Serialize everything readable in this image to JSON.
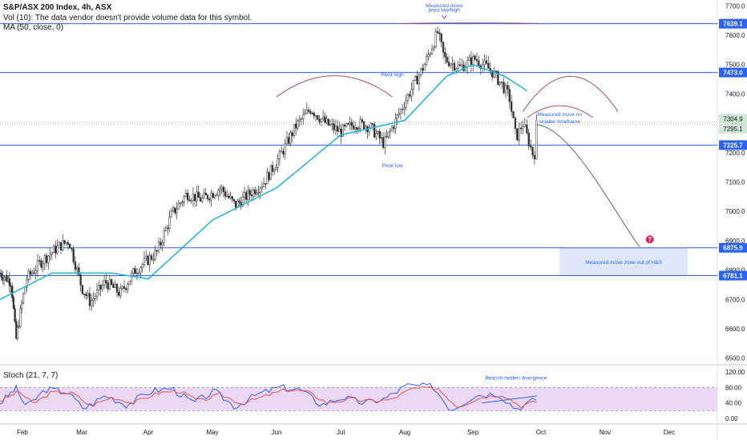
{
  "header": {
    "symbol_line": "S&P/ASX 200 Index, 4h, ASX",
    "volume_line": "Vol (10): The data vendor doesn't provide volume data for this symbol.",
    "ma_line": "MA (50, close, 0)"
  },
  "colors": {
    "up": "#26a69a",
    "down": "#ef5350",
    "candle": "#333333",
    "ma": "#2cb5d6",
    "level": "#2962ff",
    "arc": "#9c4f7a",
    "annotation": "#2962ff",
    "zone": "#c9d8f5",
    "stoch_k": "#2962ff",
    "stoch_d": "#ef5350",
    "stoch_band": "#e6c8f0",
    "price_label_bg": "#2962ff",
    "current_label_bg": "#d1e7d6"
  },
  "chart_data": {
    "type": "candlestick",
    "ylim": [
      6480,
      7720
    ],
    "y_ticks": [
      "7700.0",
      "7600.0",
      "7500.0",
      "7400.0",
      "7300.0",
      "7200.0",
      "7100.0",
      "7000.0",
      "6900.0",
      "6800.0",
      "6700.0",
      "6600.0",
      "6500.0"
    ],
    "y_tick_values": [
      7700,
      7600,
      7500,
      7400,
      7300,
      7200,
      7100,
      7000,
      6900,
      6800,
      6700,
      6600,
      6500
    ],
    "x_months": [
      "Feb",
      "Mar",
      "Apr",
      "May",
      "Jun",
      "Jul",
      "Aug",
      "Sep",
      "Oct",
      "Nov",
      "Dec"
    ],
    "x_month_dates": [
      "2021-02-01",
      "2021-03-01",
      "2021-04-01",
      "2021-05-01",
      "2021-06-01",
      "2021-07-01",
      "2021-08-01",
      "2021-09-01",
      "2021-10-01",
      "2021-11-01",
      "2021-12-01"
    ],
    "price_path": [
      [
        "2021-01-18",
        6790
      ],
      [
        "2021-01-25",
        6760
      ],
      [
        "2021-01-28",
        6560
      ],
      [
        "2021-02-03",
        6770
      ],
      [
        "2021-02-10",
        6830
      ],
      [
        "2021-02-18",
        6880
      ],
      [
        "2021-02-23",
        6900
      ],
      [
        "2021-03-01",
        6740
      ],
      [
        "2021-03-05",
        6690
      ],
      [
        "2021-03-12",
        6760
      ],
      [
        "2021-03-19",
        6720
      ],
      [
        "2021-03-26",
        6800
      ],
      [
        "2021-04-05",
        6860
      ],
      [
        "2021-04-12",
        6990
      ],
      [
        "2021-04-19",
        7060
      ],
      [
        "2021-04-26",
        7040
      ],
      [
        "2021-05-05",
        7080
      ],
      [
        "2021-05-12",
        7020
      ],
      [
        "2021-05-19",
        7060
      ],
      [
        "2021-05-26",
        7100
      ],
      [
        "2021-06-02",
        7180
      ],
      [
        "2021-06-10",
        7290
      ],
      [
        "2021-06-17",
        7350
      ],
      [
        "2021-06-24",
        7300
      ],
      [
        "2021-07-01",
        7270
      ],
      [
        "2021-07-08",
        7300
      ],
      [
        "2021-07-15",
        7290
      ],
      [
        "2021-07-22",
        7230
      ],
      [
        "2021-07-29",
        7330
      ],
      [
        "2021-08-05",
        7430
      ],
      [
        "2021-08-10",
        7500
      ],
      [
        "2021-08-16",
        7610
      ],
      [
        "2021-08-19",
        7520
      ],
      [
        "2021-08-26",
        7490
      ],
      [
        "2021-09-02",
        7520
      ],
      [
        "2021-09-09",
        7480
      ],
      [
        "2021-09-14",
        7430
      ],
      [
        "2021-09-17",
        7390
      ],
      [
        "2021-09-20",
        7250
      ],
      [
        "2021-09-23",
        7300
      ],
      [
        "2021-09-28",
        7180
      ],
      [
        "2021-09-29",
        7295
      ]
    ],
    "ma_path": [
      [
        "2021-01-18",
        6700
      ],
      [
        "2021-02-15",
        6790
      ],
      [
        "2021-03-15",
        6790
      ],
      [
        "2021-04-01",
        6770
      ],
      [
        "2021-05-01",
        6970
      ],
      [
        "2021-06-01",
        7080
      ],
      [
        "2021-07-01",
        7260
      ],
      [
        "2021-08-01",
        7310
      ],
      [
        "2021-08-20",
        7460
      ],
      [
        "2021-09-01",
        7500
      ],
      [
        "2021-09-15",
        7460
      ],
      [
        "2021-09-25",
        7410
      ]
    ],
    "levels": [
      {
        "value": 7639.1,
        "label": "7639.1"
      },
      {
        "value": 7473.0,
        "label": "7473.0"
      },
      {
        "value": 7225.7,
        "label": "7225.7"
      },
      {
        "value": 6875.9,
        "label": "6875.9"
      },
      {
        "value": 6781.1,
        "label": "6781.1"
      }
    ],
    "dotted_levels": [
      7304.9,
      7295.1
    ],
    "price_labels": [
      {
        "value": 7304.9,
        "label": "7304.9"
      },
      {
        "value": 7295.1,
        "label": "7295.1"
      }
    ],
    "zone": {
      "x1": "2021-10-10",
      "x2": "2021-12-10",
      "y1": 6875.9,
      "y2": 6781.1,
      "label": "Measured move zone out of H&S"
    },
    "arcs": [
      {
        "x1": "2021-06-01",
        "x2": "2021-07-26",
        "y_base": 7390,
        "y_peak": 7462
      },
      {
        "x1": "2021-07-30",
        "x2": "2021-09-30",
        "y_base": 7640,
        "y_peak": 7642
      },
      {
        "x1": "2021-09-23",
        "x2": "2021-11-07",
        "y_base": 7340,
        "y_peak": 7460
      },
      {
        "x1": "2021-09-25",
        "x2": "2021-10-26",
        "y_base": 7320,
        "y_peak": 7360
      }
    ],
    "annotations": [
      {
        "text": "Measured move",
        "x": "2021-08-19",
        "y": 7695
      },
      {
        "text": "pivot low/high",
        "x": "2021-08-19",
        "y": 7680
      },
      {
        "text": "Pivot high",
        "x": "2021-07-26",
        "y": 7460
      },
      {
        "text": "Pivot low",
        "x": "2021-07-26",
        "y": 7150
      },
      {
        "text": "Measured move on",
        "x": "2021-10-10",
        "y": 7325
      },
      {
        "text": "smaller timeframe",
        "x": "2021-10-10",
        "y": 7300
      }
    ],
    "projection": [
      [
        "2021-09-29",
        7295
      ],
      [
        "2021-10-15",
        7290
      ],
      [
        "2021-11-05",
        7000
      ],
      [
        "2021-11-17",
        6880
      ]
    ],
    "stoch": {
      "title": "Stoch (21, 7, 7)",
      "ylim": [
        -10,
        130
      ],
      "y_ticks": [
        "120.00",
        "80.00",
        "40.00",
        "0.00"
      ],
      "y_tick_values": [
        120,
        80,
        40,
        0
      ],
      "band": [
        20,
        80
      ],
      "annotation": "Bearish hidden divergence",
      "k_path": [
        [
          "2021-01-18",
          40
        ],
        [
          "2021-01-28",
          78
        ],
        [
          "2021-02-03",
          30
        ],
        [
          "2021-02-12",
          75
        ],
        [
          "2021-02-22",
          70
        ],
        [
          "2021-03-02",
          25
        ],
        [
          "2021-03-12",
          60
        ],
        [
          "2021-03-22",
          35
        ],
        [
          "2021-04-02",
          70
        ],
        [
          "2021-04-12",
          78
        ],
        [
          "2021-04-22",
          40
        ],
        [
          "2021-05-02",
          70
        ],
        [
          "2021-05-12",
          30
        ],
        [
          "2021-05-22",
          60
        ],
        [
          "2021-06-02",
          80
        ],
        [
          "2021-06-12",
          75
        ],
        [
          "2021-06-22",
          35
        ],
        [
          "2021-07-02",
          55
        ],
        [
          "2021-07-12",
          40
        ],
        [
          "2021-07-22",
          50
        ],
        [
          "2021-08-02",
          85
        ],
        [
          "2021-08-14",
          82
        ],
        [
          "2021-08-22",
          22
        ],
        [
          "2021-09-02",
          60
        ],
        [
          "2021-09-12",
          65
        ],
        [
          "2021-09-20",
          25
        ],
        [
          "2021-09-29",
          50
        ]
      ],
      "d_path": [
        [
          "2021-01-18",
          45
        ],
        [
          "2021-01-30",
          70
        ],
        [
          "2021-02-06",
          38
        ],
        [
          "2021-02-15",
          68
        ],
        [
          "2021-02-25",
          65
        ],
        [
          "2021-03-05",
          32
        ],
        [
          "2021-03-15",
          55
        ],
        [
          "2021-03-25",
          40
        ],
        [
          "2021-04-05",
          65
        ],
        [
          "2021-04-15",
          72
        ],
        [
          "2021-04-25",
          45
        ],
        [
          "2021-05-05",
          62
        ],
        [
          "2021-05-15",
          38
        ],
        [
          "2021-05-25",
          55
        ],
        [
          "2021-06-05",
          74
        ],
        [
          "2021-06-15",
          70
        ],
        [
          "2021-06-25",
          40
        ],
        [
          "2021-07-05",
          50
        ],
        [
          "2021-07-15",
          45
        ],
        [
          "2021-07-25",
          48
        ],
        [
          "2021-08-05",
          78
        ],
        [
          "2021-08-16",
          78
        ],
        [
          "2021-08-25",
          30
        ],
        [
          "2021-09-05",
          55
        ],
        [
          "2021-09-14",
          62
        ],
        [
          "2021-09-22",
          32
        ],
        [
          "2021-09-29",
          44
        ]
      ]
    }
  }
}
